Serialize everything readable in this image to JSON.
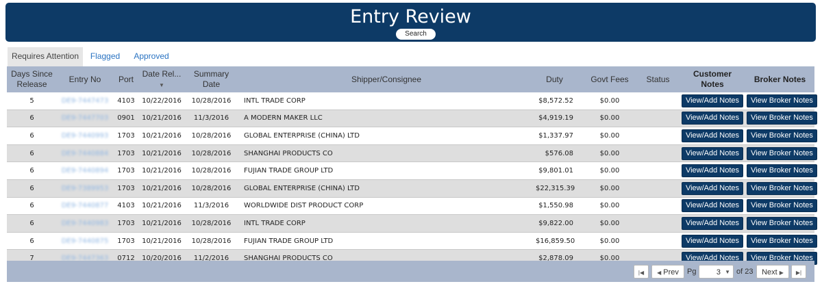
{
  "header": {
    "title": "Entry Review",
    "search_label": "Search"
  },
  "tabs": [
    {
      "label": "Requires Attention"
    },
    {
      "label": "Flagged"
    },
    {
      "label": "Approved"
    }
  ],
  "columns": {
    "days": "Days Since Release",
    "entry": "Entry No",
    "port": "Port",
    "date_rel": "Date Rel...",
    "summary": "Summary Date",
    "shipper": "Shipper/Consignee",
    "duty": "Duty",
    "govt": "Govt Fees",
    "status": "Status",
    "cust": "Customer Notes",
    "broker": "Broker Notes"
  },
  "rows": [
    {
      "days": "5",
      "entry": "DE9-7447473",
      "port": "4103",
      "date_rel": "10/22/2016",
      "summary": "10/28/2016",
      "shipper": "INTL TRADE CORP",
      "duty": "$8,572.52",
      "govt": "$0.00",
      "status": ""
    },
    {
      "days": "6",
      "entry": "DE9-7447703",
      "port": "0901",
      "date_rel": "10/21/2016",
      "summary": "11/3/2016",
      "shipper": "A MODERN MAKER LLC",
      "duty": "$4,919.19",
      "govt": "$0.00",
      "status": ""
    },
    {
      "days": "6",
      "entry": "DE9-7440993",
      "port": "1703",
      "date_rel": "10/21/2016",
      "summary": "10/28/2016",
      "shipper": "GLOBAL ENTERPRISE (CHINA) LTD",
      "duty": "$1,337.97",
      "govt": "$0.00",
      "status": ""
    },
    {
      "days": "6",
      "entry": "DE9-7440884",
      "port": "1703",
      "date_rel": "10/21/2016",
      "summary": "10/28/2016",
      "shipper": "SHANGHAI PRODUCTS CO",
      "duty": "$576.08",
      "govt": "$0.00",
      "status": ""
    },
    {
      "days": "6",
      "entry": "DE9-7440894",
      "port": "1703",
      "date_rel": "10/21/2016",
      "summary": "10/28/2016",
      "shipper": "FUJIAN TRADE GROUP LTD",
      "duty": "$9,801.01",
      "govt": "$0.00",
      "status": ""
    },
    {
      "days": "6",
      "entry": "DE9-7389953",
      "port": "1703",
      "date_rel": "10/21/2016",
      "summary": "10/28/2016",
      "shipper": "GLOBAL ENTERPRISE (CHINA) LTD",
      "duty": "$22,315.39",
      "govt": "$0.00",
      "status": ""
    },
    {
      "days": "6",
      "entry": "DE9-7440877",
      "port": "4103",
      "date_rel": "10/21/2016",
      "summary": "11/3/2016",
      "shipper": "WORLDWIDE DIST PRODUCT CORP",
      "duty": "$1,550.98",
      "govt": "$0.00",
      "status": ""
    },
    {
      "days": "6",
      "entry": "DE9-7440983",
      "port": "1703",
      "date_rel": "10/21/2016",
      "summary": "10/28/2016",
      "shipper": "INTL TRADE CORP",
      "duty": "$9,822.00",
      "govt": "$0.00",
      "status": ""
    },
    {
      "days": "6",
      "entry": "DE9-7440875",
      "port": "1703",
      "date_rel": "10/21/2016",
      "summary": "10/28/2016",
      "shipper": "FUJIAN TRADE GROUP LTD",
      "duty": "$16,859.50",
      "govt": "$0.00",
      "status": ""
    },
    {
      "days": "7",
      "entry": "DE9-7447363",
      "port": "0712",
      "date_rel": "10/20/2016",
      "summary": "11/2/2016",
      "shipper": "SHANGHAI PRODUCTS CO",
      "duty": "$2,878.09",
      "govt": "$0.00",
      "status": ""
    }
  ],
  "row_actions": {
    "customer": "View/Add Notes",
    "broker": "View Broker Notes"
  },
  "pager": {
    "first_icon": "first-page-icon",
    "prev": "Prev",
    "pg_label": "Pg",
    "page": "3",
    "of": "of 23",
    "next": "Next",
    "last_icon": "last-page-icon"
  }
}
